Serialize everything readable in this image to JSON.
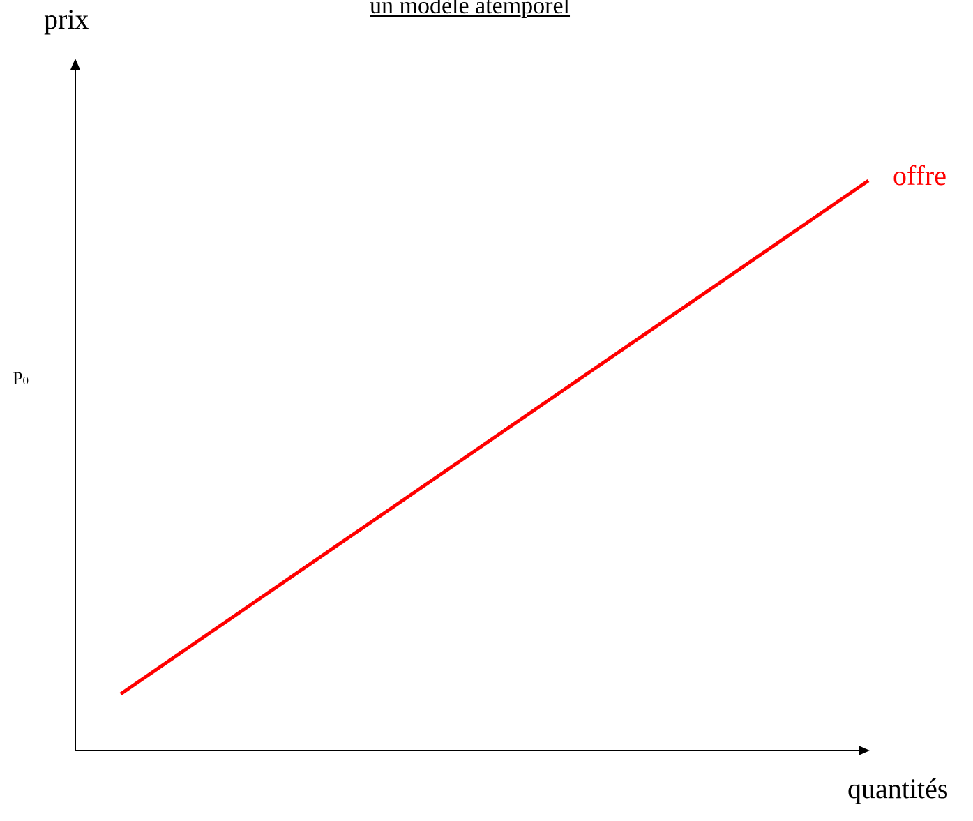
{
  "title": "un modèle atemporel",
  "y_axis_label": "prix",
  "x_axis_label": "quantités",
  "price_marker": {
    "main": "P",
    "sub": "0"
  },
  "curve": {
    "label": "offre",
    "color": "#ff0000"
  },
  "axis_color": "#000000"
}
